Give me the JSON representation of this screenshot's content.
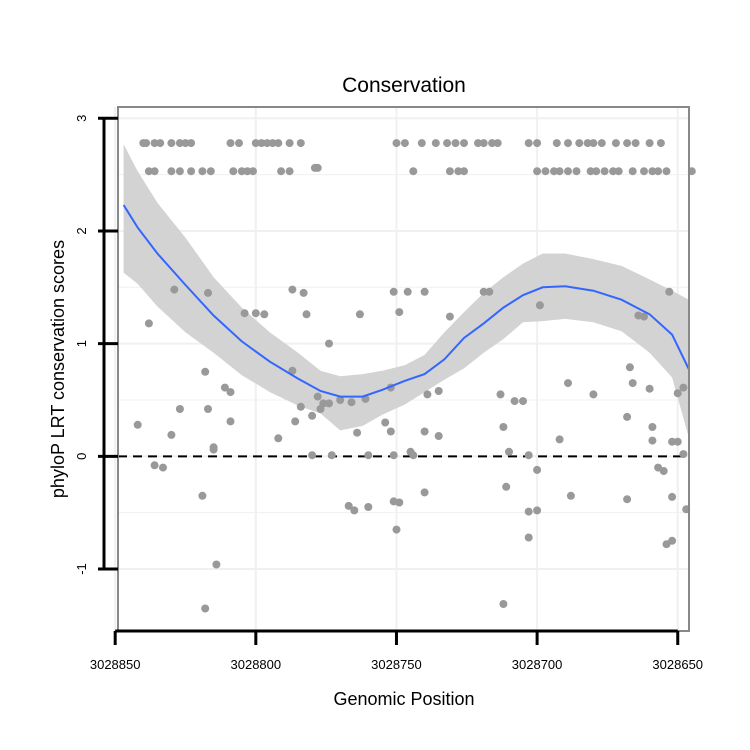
{
  "chart_data": {
    "type": "scatter",
    "title": "Conservation",
    "xlabel": "Genomic Position",
    "ylabel": "phyloP LRT conservation scores",
    "x_reversed": true,
    "xlim": [
      3028849,
      3028646
    ],
    "ylim": [
      -1.55,
      3.1
    ],
    "x_ticks": [
      3028850,
      3028800,
      3028750,
      3028700,
      3028650
    ],
    "x_tick_labels": [
      "3028850",
      "3028800",
      "3028750",
      "3028700",
      "3028650"
    ],
    "y_ticks": [
      -1,
      0,
      1,
      2,
      3
    ],
    "y_tick_labels": [
      "-1",
      "0",
      "1",
      "2",
      "3"
    ],
    "grid": true,
    "reference_line": {
      "y": 0,
      "style": "dashed",
      "color": "#000000"
    },
    "colors": {
      "points": "#999999",
      "smooth_line": "#3366ff",
      "confidence_band": "#d3d3d3",
      "panel_border": "#888888",
      "grid": "#f0f0f0"
    },
    "points": [
      [
        3028840,
        2.78
      ],
      [
        3028839,
        2.78
      ],
      [
        3028836,
        2.78
      ],
      [
        3028834,
        2.78
      ],
      [
        3028830,
        2.78
      ],
      [
        3028827,
        2.78
      ],
      [
        3028825,
        2.78
      ],
      [
        3028823,
        2.78
      ],
      [
        3028809,
        2.78
      ],
      [
        3028806,
        2.78
      ],
      [
        3028800,
        2.78
      ],
      [
        3028798,
        2.78
      ],
      [
        3028796,
        2.78
      ],
      [
        3028794,
        2.78
      ],
      [
        3028792,
        2.78
      ],
      [
        3028788,
        2.78
      ],
      [
        3028784,
        2.78
      ],
      [
        3028750,
        2.78
      ],
      [
        3028747,
        2.78
      ],
      [
        3028741,
        2.78
      ],
      [
        3028736,
        2.78
      ],
      [
        3028732,
        2.78
      ],
      [
        3028729,
        2.78
      ],
      [
        3028726,
        2.78
      ],
      [
        3028721,
        2.78
      ],
      [
        3028719,
        2.78
      ],
      [
        3028716,
        2.78
      ],
      [
        3028714,
        2.78
      ],
      [
        3028703,
        2.78
      ],
      [
        3028700,
        2.78
      ],
      [
        3028693,
        2.78
      ],
      [
        3028689,
        2.78
      ],
      [
        3028685,
        2.78
      ],
      [
        3028682,
        2.78
      ],
      [
        3028680,
        2.78
      ],
      [
        3028677,
        2.78
      ],
      [
        3028672,
        2.78
      ],
      [
        3028668,
        2.78
      ],
      [
        3028665,
        2.78
      ],
      [
        3028660,
        2.78
      ],
      [
        3028656,
        2.78
      ],
      [
        3028838,
        2.53
      ],
      [
        3028836,
        2.53
      ],
      [
        3028830,
        2.53
      ],
      [
        3028827,
        2.53
      ],
      [
        3028823,
        2.53
      ],
      [
        3028819,
        2.53
      ],
      [
        3028816,
        2.53
      ],
      [
        3028808,
        2.53
      ],
      [
        3028805,
        2.53
      ],
      [
        3028803,
        2.53
      ],
      [
        3028801,
        2.53
      ],
      [
        3028791,
        2.53
      ],
      [
        3028788,
        2.53
      ],
      [
        3028744,
        2.53
      ],
      [
        3028731,
        2.53
      ],
      [
        3028728,
        2.53
      ],
      [
        3028726,
        2.53
      ],
      [
        3028700,
        2.53
      ],
      [
        3028697,
        2.53
      ],
      [
        3028694,
        2.53
      ],
      [
        3028692,
        2.53
      ],
      [
        3028689,
        2.53
      ],
      [
        3028686,
        2.53
      ],
      [
        3028681,
        2.53
      ],
      [
        3028679,
        2.53
      ],
      [
        3028676,
        2.53
      ],
      [
        3028673,
        2.53
      ],
      [
        3028671,
        2.53
      ],
      [
        3028666,
        2.53
      ],
      [
        3028662,
        2.53
      ],
      [
        3028659,
        2.53
      ],
      [
        3028657,
        2.53
      ],
      [
        3028654,
        2.53
      ],
      [
        3028645,
        2.53
      ],
      [
        3028779,
        2.56
      ],
      [
        3028778,
        2.56
      ],
      [
        3028829,
        1.48
      ],
      [
        3028817,
        1.45
      ],
      [
        3028804,
        1.27
      ],
      [
        3028800,
        1.27
      ],
      [
        3028797,
        1.26
      ],
      [
        3028787,
        1.48
      ],
      [
        3028783,
        1.45
      ],
      [
        3028782,
        1.26
      ],
      [
        3028774,
        1.0
      ],
      [
        3028763,
        1.26
      ],
      [
        3028751,
        1.46
      ],
      [
        3028749,
        1.28
      ],
      [
        3028746,
        1.46
      ],
      [
        3028740,
        1.46
      ],
      [
        3028731,
        1.24
      ],
      [
        3028719,
        1.46
      ],
      [
        3028717,
        1.46
      ],
      [
        3028699,
        1.34
      ],
      [
        3028664,
        1.25
      ],
      [
        3028662,
        1.24
      ],
      [
        3028653,
        1.46
      ],
      [
        3028838,
        1.18
      ],
      [
        3028818,
        0.75
      ],
      [
        3028811,
        0.61
      ],
      [
        3028809,
        0.57
      ],
      [
        3028787,
        0.76
      ],
      [
        3028778,
        0.53
      ],
      [
        3028776,
        0.47
      ],
      [
        3028766,
        0.48
      ],
      [
        3028761,
        0.51
      ],
      [
        3028752,
        0.61
      ],
      [
        3028739,
        0.55
      ],
      [
        3028735,
        0.58
      ],
      [
        3028713,
        0.55
      ],
      [
        3028708,
        0.49
      ],
      [
        3028705,
        0.49
      ],
      [
        3028689,
        0.65
      ],
      [
        3028680,
        0.55
      ],
      [
        3028667,
        0.79
      ],
      [
        3028666,
        0.65
      ],
      [
        3028660,
        0.6
      ],
      [
        3028650,
        0.56
      ],
      [
        3028648,
        0.61
      ],
      [
        3028842,
        0.28
      ],
      [
        3028817,
        0.42
      ],
      [
        3028815,
        0.08
      ],
      [
        3028809,
        0.31
      ],
      [
        3028792,
        0.16
      ],
      [
        3028786,
        0.31
      ],
      [
        3028784,
        0.44
      ],
      [
        3028780,
        0.36
      ],
      [
        3028774,
        0.47
      ],
      [
        3028777,
        0.42
      ],
      [
        3028770,
        0.5
      ],
      [
        3028764,
        0.21
      ],
      [
        3028754,
        0.3
      ],
      [
        3028752,
        0.22
      ],
      [
        3028745,
        0.04
      ],
      [
        3028740,
        0.22
      ],
      [
        3028735,
        0.18
      ],
      [
        3028712,
        0.26
      ],
      [
        3028692,
        0.15
      ],
      [
        3028668,
        0.35
      ],
      [
        3028659,
        0.26
      ],
      [
        3028659,
        0.14
      ],
      [
        3028652,
        0.13
      ],
      [
        3028650,
        0.13
      ],
      [
        3028836,
        -0.08
      ],
      [
        3028833,
        -0.1
      ],
      [
        3028830,
        0.19
      ],
      [
        3028827,
        0.42
      ],
      [
        3028815,
        0.06
      ],
      [
        3028780,
        0.01
      ],
      [
        3028773,
        0.01
      ],
      [
        3028760,
        0.01
      ],
      [
        3028744,
        0.01
      ],
      [
        3028751,
        0.01
      ],
      [
        3028710,
        0.04
      ],
      [
        3028703,
        0.01
      ],
      [
        3028648,
        0.02
      ],
      [
        3028700,
        -0.12
      ],
      [
        3028657,
        -0.1
      ],
      [
        3028655,
        -0.13
      ],
      [
        3028819,
        -0.35
      ],
      [
        3028767,
        -0.44
      ],
      [
        3028765,
        -0.48
      ],
      [
        3028760,
        -0.45
      ],
      [
        3028751,
        -0.4
      ],
      [
        3028749,
        -0.41
      ],
      [
        3028740,
        -0.32
      ],
      [
        3028711,
        -0.27
      ],
      [
        3028703,
        -0.49
      ],
      [
        3028700,
        -0.48
      ],
      [
        3028688,
        -0.35
      ],
      [
        3028668,
        -0.38
      ],
      [
        3028652,
        -0.36
      ],
      [
        3028647,
        -0.47
      ],
      [
        3028750,
        -0.65
      ],
      [
        3028703,
        -0.72
      ],
      [
        3028654,
        -0.78
      ],
      [
        3028652,
        -0.75
      ],
      [
        3028814,
        -0.96
      ],
      [
        3028818,
        -1.35
      ],
      [
        3028712,
        -1.31
      ]
    ],
    "smooth_line": [
      [
        3028847,
        2.23
      ],
      [
        3028842,
        2.03
      ],
      [
        3028835,
        1.8
      ],
      [
        3028825,
        1.52
      ],
      [
        3028815,
        1.25
      ],
      [
        3028805,
        1.02
      ],
      [
        3028795,
        0.84
      ],
      [
        3028785,
        0.69
      ],
      [
        3028777,
        0.58
      ],
      [
        3028770,
        0.53
      ],
      [
        3028762,
        0.53
      ],
      [
        3028755,
        0.59
      ],
      [
        3028747,
        0.67
      ],
      [
        3028740,
        0.73
      ],
      [
        3028733,
        0.86
      ],
      [
        3028726,
        1.05
      ],
      [
        3028719,
        1.18
      ],
      [
        3028712,
        1.32
      ],
      [
        3028705,
        1.43
      ],
      [
        3028698,
        1.5
      ],
      [
        3028690,
        1.51
      ],
      [
        3028680,
        1.47
      ],
      [
        3028670,
        1.39
      ],
      [
        3028660,
        1.26
      ],
      [
        3028652,
        1.08
      ],
      [
        3028646,
        0.77
      ]
    ],
    "confidence_upper": [
      [
        3028847,
        2.77
      ],
      [
        3028842,
        2.53
      ],
      [
        3028835,
        2.25
      ],
      [
        3028825,
        1.94
      ],
      [
        3028815,
        1.59
      ],
      [
        3028805,
        1.32
      ],
      [
        3028795,
        1.1
      ],
      [
        3028785,
        0.92
      ],
      [
        3028777,
        0.76
      ],
      [
        3028770,
        0.71
      ],
      [
        3028762,
        0.73
      ],
      [
        3028755,
        0.76
      ],
      [
        3028747,
        0.81
      ],
      [
        3028740,
        0.9
      ],
      [
        3028733,
        1.1
      ],
      [
        3028726,
        1.28
      ],
      [
        3028719,
        1.45
      ],
      [
        3028712,
        1.59
      ],
      [
        3028705,
        1.71
      ],
      [
        3028698,
        1.8
      ],
      [
        3028690,
        1.8
      ],
      [
        3028680,
        1.75
      ],
      [
        3028670,
        1.69
      ],
      [
        3028660,
        1.57
      ],
      [
        3028652,
        1.47
      ],
      [
        3028646,
        1.39
      ]
    ],
    "confidence_lower": [
      [
        3028847,
        1.63
      ],
      [
        3028842,
        1.53
      ],
      [
        3028835,
        1.33
      ],
      [
        3028825,
        1.1
      ],
      [
        3028815,
        0.92
      ],
      [
        3028805,
        0.72
      ],
      [
        3028795,
        0.57
      ],
      [
        3028785,
        0.45
      ],
      [
        3028777,
        0.38
      ],
      [
        3028770,
        0.23
      ],
      [
        3028762,
        0.27
      ],
      [
        3028755,
        0.37
      ],
      [
        3028747,
        0.46
      ],
      [
        3028740,
        0.57
      ],
      [
        3028733,
        0.68
      ],
      [
        3028726,
        0.78
      ],
      [
        3028719,
        0.92
      ],
      [
        3028712,
        1.04
      ],
      [
        3028705,
        1.19
      ],
      [
        3028698,
        1.2
      ],
      [
        3028690,
        1.22
      ],
      [
        3028680,
        1.19
      ],
      [
        3028670,
        1.11
      ],
      [
        3028660,
        0.92
      ],
      [
        3028652,
        0.7
      ],
      [
        3028646,
        0.16
      ]
    ]
  }
}
